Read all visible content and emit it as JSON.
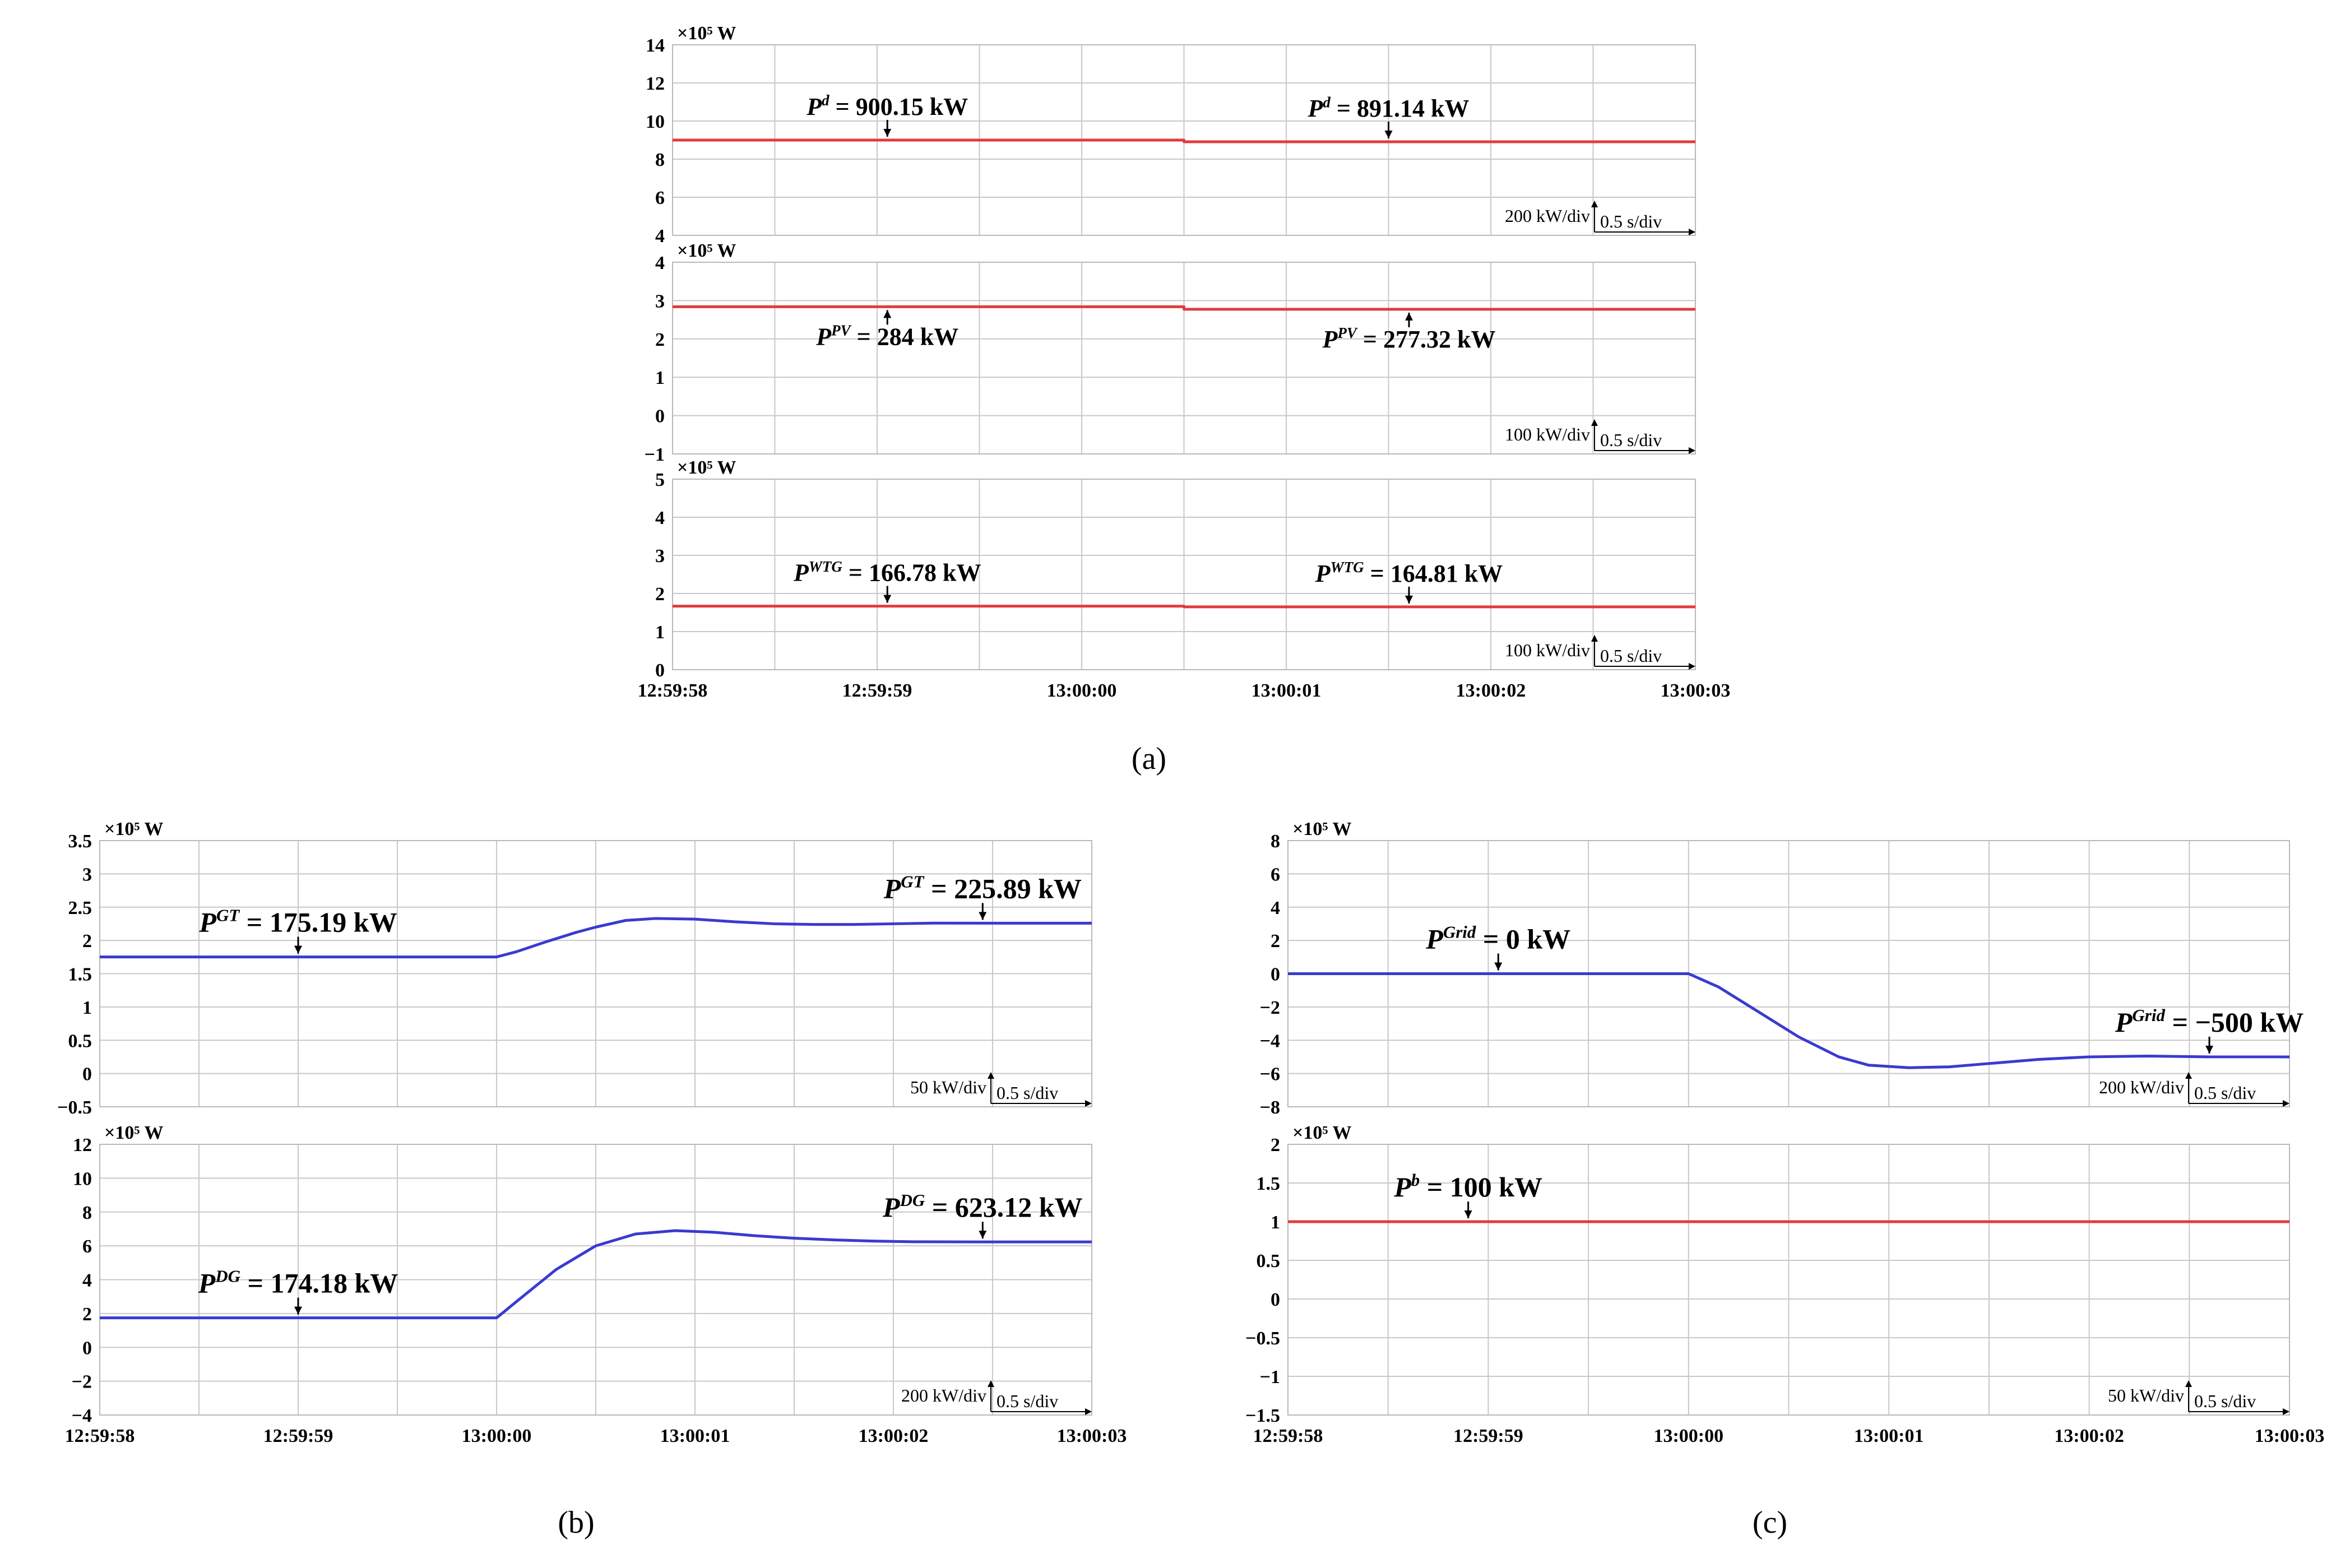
{
  "figure": {
    "panel_labels": [
      "(a)",
      "(b)",
      "(c)"
    ]
  },
  "colors": {
    "red": "#e03c3c",
    "blue": "#3a3ad0",
    "grid": "#c8c8c8"
  },
  "chart_data": [
    {
      "id": "a1",
      "panel": "(a)",
      "type": "line",
      "y_unit": "×10⁵ W",
      "ylim": [
        4,
        14
      ],
      "yticks": [
        "14",
        "12",
        "10",
        "8",
        "6",
        "4"
      ],
      "series": [
        {
          "name": "Pd",
          "color": "red",
          "x": [
            0,
            2.5,
            2.5,
            5
          ],
          "values": [
            9.0015,
            9.0015,
            8.9114,
            8.9114
          ]
        }
      ],
      "annotations": [
        {
          "sym": "P",
          "sup": "d",
          "text": " = 900.15 kW",
          "x": 1.05,
          "arrow": "down"
        },
        {
          "sym": "P",
          "sup": "d",
          "text": " = 891.14 kW",
          "x": 3.5,
          "arrow": "down"
        }
      ],
      "scale": {
        "amp": "200 kW/div",
        "time": "0.5 s/div"
      }
    },
    {
      "id": "a2",
      "panel": "(a)",
      "type": "line",
      "y_unit": "×10⁵ W",
      "ylim": [
        -1,
        4
      ],
      "yticks": [
        "4",
        "3",
        "2",
        "1",
        "0",
        "−1"
      ],
      "series": [
        {
          "name": "PPV",
          "color": "red",
          "x": [
            0,
            2.5,
            2.5,
            5
          ],
          "values": [
            2.84,
            2.84,
            2.7732,
            2.7732
          ]
        }
      ],
      "annotations": [
        {
          "sym": "P",
          "sup": "PV",
          "text": " = 284 kW",
          "x": 1.05,
          "arrow": "up"
        },
        {
          "sym": "P",
          "sup": "PV",
          "text": " = 277.32 kW",
          "x": 3.6,
          "arrow": "up"
        }
      ],
      "scale": {
        "amp": "100 kW/div",
        "time": "0.5 s/div"
      }
    },
    {
      "id": "a3",
      "panel": "(a)",
      "type": "line",
      "y_unit": "×10⁵ W",
      "ylim": [
        0,
        5
      ],
      "yticks": [
        "5",
        "4",
        "3",
        "2",
        "1",
        "0"
      ],
      "series": [
        {
          "name": "PWTG",
          "color": "red",
          "x": [
            0,
            2.5,
            2.5,
            5
          ],
          "values": [
            1.6678,
            1.6678,
            1.6481,
            1.6481
          ]
        }
      ],
      "annotations": [
        {
          "sym": "P",
          "sup": "WTG",
          "text": " = 166.78 kW",
          "x": 1.05,
          "arrow": "down"
        },
        {
          "sym": "P",
          "sup": "WTG",
          "text": " = 164.81 kW",
          "x": 3.6,
          "arrow": "down"
        }
      ],
      "scale": {
        "amp": "100 kW/div",
        "time": "0.5 s/div"
      },
      "xticks": [
        "12:59:58",
        "12:59:59",
        "13:00:00",
        "13:00:01",
        "13:00:02",
        "13:00:03"
      ]
    },
    {
      "id": "b1",
      "panel": "(b)",
      "type": "line",
      "y_unit": "×10⁵ W",
      "ylim": [
        -0.5,
        3.5
      ],
      "yticks": [
        "3.5",
        "3",
        "2.5",
        "2",
        "1.5",
        "1",
        "0.5",
        "0",
        "−0.5"
      ],
      "series": [
        {
          "name": "PGT",
          "color": "blue",
          "x": [
            0,
            2,
            2.1,
            2.25,
            2.4,
            2.5,
            2.65,
            2.8,
            3,
            3.2,
            3.4,
            3.6,
            3.8,
            4,
            4.2,
            4.5,
            5
          ],
          "values": [
            1.7519,
            1.7519,
            1.83,
            1.98,
            2.12,
            2.2,
            2.3,
            2.33,
            2.32,
            2.28,
            2.25,
            2.24,
            2.24,
            2.25,
            2.26,
            2.2589,
            2.2589
          ]
        }
      ],
      "annotations": [
        {
          "sym": "P",
          "sup": "GT",
          "text": " = 175.19 kW",
          "x": 1.0,
          "arrow": "down"
        },
        {
          "sym": "P",
          "sup": "GT",
          "text": " = 225.89 kW",
          "x": 4.45,
          "arrow": "down"
        }
      ],
      "scale": {
        "amp": "50 kW/div",
        "time": "0.5 s/div"
      }
    },
    {
      "id": "b2",
      "panel": "(b)",
      "type": "line",
      "y_unit": "×10⁵ W",
      "ylim": [
        -4,
        12
      ],
      "yticks": [
        "12",
        "10",
        "8",
        "6",
        "4",
        "2",
        "0",
        "−2",
        "−4"
      ],
      "series": [
        {
          "name": "PDG",
          "color": "blue",
          "x": [
            0,
            2,
            2.1,
            2.3,
            2.5,
            2.7,
            2.9,
            3.1,
            3.3,
            3.5,
            3.7,
            3.9,
            4.1,
            4.4,
            5
          ],
          "values": [
            1.7418,
            1.7418,
            2.7,
            4.6,
            6.0,
            6.7,
            6.9,
            6.8,
            6.6,
            6.45,
            6.35,
            6.28,
            6.24,
            6.2312,
            6.2312
          ]
        }
      ],
      "annotations": [
        {
          "sym": "P",
          "sup": "DG",
          "text": " = 174.18 kW",
          "x": 1.0,
          "arrow": "down"
        },
        {
          "sym": "P",
          "sup": "DG",
          "text": " = 623.12 kW",
          "x": 4.45,
          "arrow": "down"
        }
      ],
      "scale": {
        "amp": "200 kW/div",
        "time": "0.5 s/div"
      },
      "xticks": [
        "12:59:58",
        "12:59:59",
        "13:00:00",
        "13:00:01",
        "13:00:02",
        "13:00:03"
      ]
    },
    {
      "id": "c1",
      "panel": "(c)",
      "type": "line",
      "y_unit": "×10⁵ W",
      "ylim": [
        -8,
        8
      ],
      "yticks": [
        "8",
        "6",
        "4",
        "2",
        "0",
        "−2",
        "−4",
        "−6",
        "−8"
      ],
      "series": [
        {
          "name": "PGrid",
          "color": "blue",
          "x": [
            0,
            2,
            2.15,
            2.35,
            2.55,
            2.75,
            2.9,
            3.1,
            3.3,
            3.5,
            3.75,
            4,
            4.3,
            4.6,
            5
          ],
          "values": [
            0,
            0,
            -0.8,
            -2.3,
            -3.8,
            -5.0,
            -5.5,
            -5.65,
            -5.6,
            -5.4,
            -5.15,
            -5.0,
            -4.95,
            -5.0,
            -5.0
          ]
        }
      ],
      "annotations": [
        {
          "sym": "P",
          "sup": "Grid",
          "text": " = 0 kW",
          "x": 1.05,
          "arrow": "down"
        },
        {
          "sym": "P",
          "sup": "Grid",
          "text": " = −500 kW",
          "x": 4.6,
          "arrow": "down"
        }
      ],
      "scale": {
        "amp": "200 kW/div",
        "time": "0.5 s/div"
      }
    },
    {
      "id": "c2",
      "panel": "(c)",
      "type": "line",
      "y_unit": "×10⁵ W",
      "ylim": [
        -1.5,
        2
      ],
      "yticks": [
        "2",
        "1.5",
        "1",
        "0.5",
        "0",
        "−0.5",
        "−1",
        "−1.5"
      ],
      "series": [
        {
          "name": "Pb",
          "color": "red",
          "x": [
            0,
            5
          ],
          "values": [
            1.0,
            1.0
          ]
        }
      ],
      "annotations": [
        {
          "sym": "P",
          "sup": "b",
          "text": " = 100 kW",
          "x": 0.9,
          "arrow": "down"
        }
      ],
      "scale": {
        "amp": "50 kW/div",
        "time": "0.5 s/div"
      },
      "xticks": [
        "12:59:58",
        "12:59:59",
        "13:00:00",
        "13:00:01",
        "13:00:02",
        "13:00:03"
      ]
    }
  ]
}
